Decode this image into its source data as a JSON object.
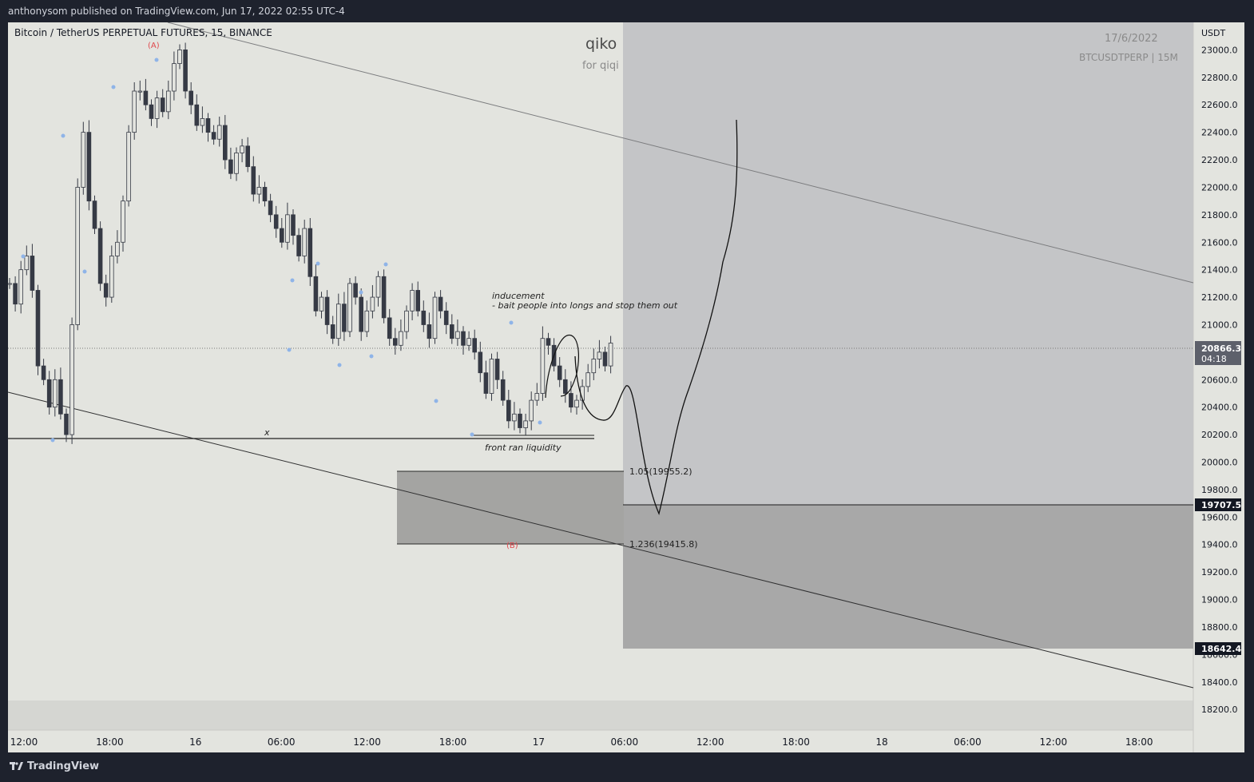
{
  "header": {
    "publish_text": "anthonysom published on TradingView.com, Jun 17, 2022 02:55 UTC-4"
  },
  "footer": {
    "brand": "TradingView",
    "logo_icon": "tradingview-logo-icon"
  },
  "chart_data": {
    "type": "candlestick",
    "title": "Bitcoin / TetherUS PERPETUAL FUTURES, 15, BINANCE",
    "symbol_label": "BTCUSDTPERP | 15M",
    "date_label": "17/6/2022",
    "watermark_title": "qiko",
    "watermark_sub": "for qiqi",
    "currency": "USDT",
    "ylim": [
      18050,
      23200
    ],
    "y_ticks": [
      "23000.0",
      "22800.0",
      "22600.0",
      "22400.0",
      "22200.0",
      "22000.0",
      "21800.0",
      "21600.0",
      "21400.0",
      "21200.0",
      "21000.0",
      "20800.0",
      "20600.0",
      "20400.0",
      "20200.0",
      "20000.0",
      "19800.0",
      "19600.0",
      "19400.0",
      "19200.0",
      "19000.0",
      "18800.0",
      "18600.0",
      "18400.0",
      "18200.0"
    ],
    "x_ticks": [
      "12:00",
      "18:00",
      "16",
      "06:00",
      "12:00",
      "18:00",
      "17",
      "06:00",
      "12:00",
      "18:00",
      "18",
      "06:00",
      "12:00",
      "18:00"
    ],
    "current_price": "20866.3",
    "countdown": "04:18",
    "price_tags": [
      "19707.5",
      "18642.4"
    ],
    "fib_labels": [
      "1.05(19955.2)",
      "1.236(19415.8)"
    ],
    "wave_labels": [
      "(A)",
      "(B)"
    ],
    "annotations": {
      "inducement_title": "inducement",
      "inducement_body": "- bait people into longs and stop them out",
      "front_ran": "front ran liquidity",
      "x_mark": "x"
    },
    "prices": [
      21300,
      21150,
      21400,
      21500,
      21250,
      20700,
      20600,
      20400,
      20600,
      20350,
      20200,
      21000,
      22000,
      22400,
      21900,
      21700,
      21300,
      21200,
      21500,
      21600,
      21900,
      22400,
      22700,
      22700,
      22600,
      22500,
      22650,
      22550,
      22700,
      22900,
      23000,
      22700,
      22600,
      22450,
      22500,
      22400,
      22350,
      22450,
      22200,
      22100,
      22250,
      22300,
      22150,
      21950,
      22000,
      21900,
      21800,
      21700,
      21600,
      21800,
      21650,
      21500,
      21700,
      21350,
      21100,
      21200,
      21000,
      20900,
      21150,
      20950,
      21300,
      21200,
      20950,
      21100,
      21200,
      21350,
      21050,
      20900,
      20850,
      20950,
      21100,
      21250,
      21100,
      21000,
      20900,
      21200,
      21100,
      21000,
      20900,
      20950,
      20850,
      20900,
      20800,
      20650,
      20500,
      20750,
      20600,
      20450,
      20300,
      20350,
      20250,
      20300,
      20450,
      20500,
      20900,
      20850,
      20700,
      20600,
      20500,
      20400,
      20450,
      20550,
      20650,
      20750,
      20800,
      20700,
      20866.3
    ],
    "colors": {
      "background": "#e3e4df",
      "chrome": "#1e222d",
      "candle": "#363a45",
      "forecast_zone": "#c4c5c7",
      "target_zone": "#a8a8a8",
      "wave_label": "#e0484d",
      "pivot_marker": "#8fb4e8"
    }
  }
}
